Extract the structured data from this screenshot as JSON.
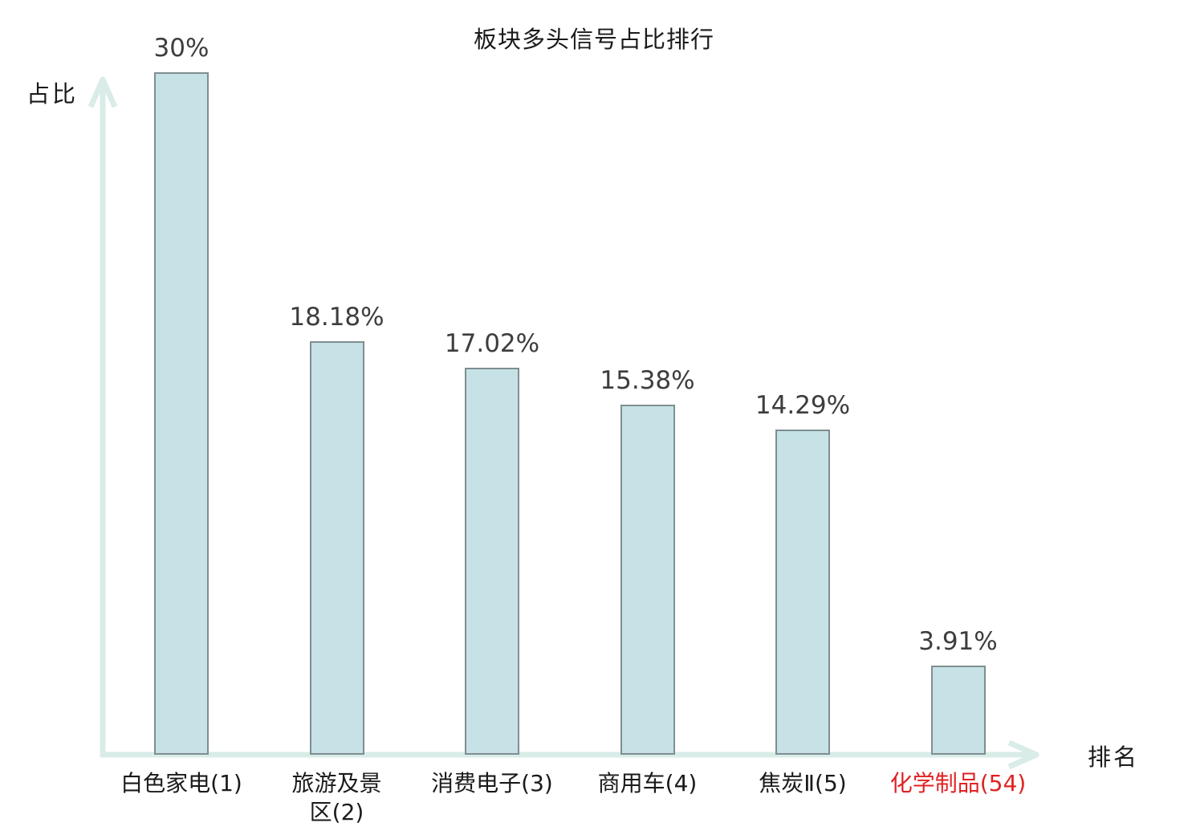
{
  "chart_data": {
    "type": "bar",
    "title": "板块多头信号占比排行",
    "xlabel": "排名",
    "ylabel": "占比",
    "categories": [
      "白色家电(1)",
      "旅游及景\n区(2)",
      "消费电子(3)",
      "商用车(4)",
      "焦炭Ⅱ(5)",
      "化学制品(54)"
    ],
    "values": [
      30,
      18.18,
      17.02,
      15.38,
      14.29,
      3.91
    ],
    "value_labels": [
      "30%",
      "18.18%",
      "17.02%",
      "15.38%",
      "14.29%",
      "3.91%"
    ],
    "ylim": [
      0,
      30
    ],
    "grid": false,
    "legend": false,
    "highlight_index": 5
  },
  "colors": {
    "bar_fill": "#c6e2e6",
    "bar_border": "#7f8e90",
    "axis": "#d9ece8",
    "value_label": "#3d3d3d",
    "category_label": "#1a1a1a",
    "highlight_category": "#e02222",
    "title": "#1a1a1a"
  }
}
